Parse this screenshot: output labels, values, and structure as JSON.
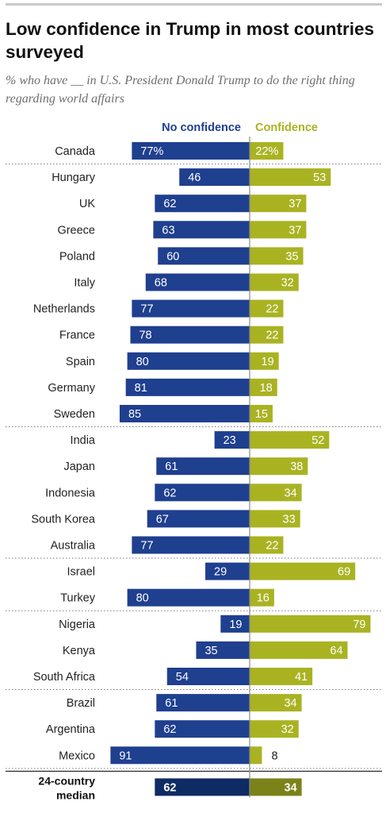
{
  "chart_data": {
    "type": "bar",
    "title": "Low confidence in Trump in most countries surveyed",
    "subtitle": "% who have __ in U.S. President Donald Trump to do the right thing regarding world affairs",
    "categories": [
      "Canada",
      "Hungary",
      "UK",
      "Greece",
      "Poland",
      "Italy",
      "Netherlands",
      "France",
      "Spain",
      "Germany",
      "Sweden",
      "India",
      "Japan",
      "Indonesia",
      "South Korea",
      "Australia",
      "Israel",
      "Turkey",
      "Nigeria",
      "Kenya",
      "South Africa",
      "Brazil",
      "Argentina",
      "Mexico"
    ],
    "display_labels": [
      "77%",
      "46",
      "62",
      "63",
      "60",
      "68",
      "77",
      "78",
      "80",
      "81",
      "85",
      "23",
      "61",
      "62",
      "67",
      "77",
      "29",
      "80",
      "19",
      "35",
      "54",
      "61",
      "62",
      "91"
    ],
    "confidence_labels": [
      "22%",
      "53",
      "37",
      "37",
      "35",
      "32",
      "22",
      "22",
      "19",
      "18",
      "15",
      "52",
      "38",
      "34",
      "33",
      "22",
      "69",
      "16",
      "79",
      "64",
      "41",
      "34",
      "32",
      "8"
    ],
    "series": [
      {
        "name": "No confidence",
        "color": "#1f3f8f",
        "values": [
          77,
          46,
          62,
          63,
          60,
          68,
          77,
          78,
          80,
          81,
          85,
          23,
          61,
          62,
          67,
          77,
          29,
          80,
          19,
          35,
          54,
          61,
          62,
          91
        ]
      },
      {
        "name": "Confidence",
        "color": "#a9b322",
        "values": [
          22,
          53,
          37,
          37,
          35,
          32,
          22,
          22,
          19,
          18,
          15,
          52,
          38,
          34,
          33,
          22,
          69,
          16,
          79,
          64,
          41,
          34,
          32,
          8
        ]
      }
    ],
    "group_ends": [
      0,
      10,
      15,
      17,
      20,
      23
    ],
    "median": {
      "label": [
        "24-country",
        "median"
      ],
      "no_confidence": 62,
      "confidence": 34,
      "colors": {
        "no_confidence": "#0e2b63",
        "confidence": "#7b8219"
      }
    },
    "axis": "diverging",
    "legend": "top"
  }
}
